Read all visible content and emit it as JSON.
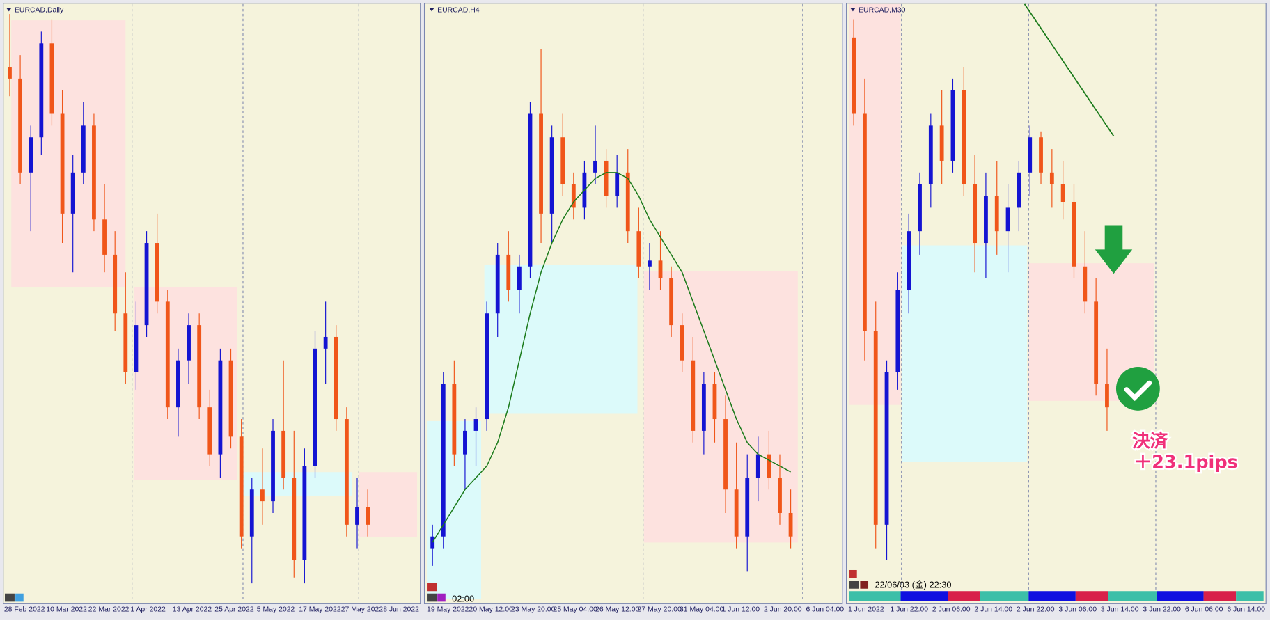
{
  "panels": [
    {
      "title": "EURCAD,Daily",
      "ylim": [
        0,
        100
      ],
      "x_labels": [
        "28 Feb 2022",
        "10 Mar 2022",
        "22 Mar 2022",
        "1 Apr 2022",
        "13 Apr 2022",
        "25 Apr 2022",
        "5 May 2022",
        "17 May 2022",
        "27 May 2022",
        "8 Jun 2022"
      ],
      "candles": [
        [
          90,
          99,
          85,
          88
        ],
        [
          88,
          92,
          70,
          72
        ],
        [
          72,
          80,
          62,
          78
        ],
        [
          78,
          96,
          75,
          94
        ],
        [
          94,
          98,
          80,
          82
        ],
        [
          82,
          86,
          60,
          65
        ],
        [
          65,
          75,
          55,
          72
        ],
        [
          72,
          84,
          70,
          80
        ],
        [
          80,
          82,
          62,
          64
        ],
        [
          64,
          70,
          55,
          58
        ],
        [
          58,
          62,
          45,
          48
        ],
        [
          48,
          55,
          36,
          38
        ],
        [
          38,
          50,
          35,
          46
        ],
        [
          46,
          62,
          44,
          60
        ],
        [
          60,
          65,
          48,
          50
        ],
        [
          50,
          52,
          30,
          32
        ],
        [
          32,
          42,
          27,
          40
        ],
        [
          40,
          48,
          36,
          46
        ],
        [
          46,
          48,
          30,
          32
        ],
        [
          32,
          35,
          22,
          24
        ],
        [
          24,
          42,
          20,
          40
        ],
        [
          40,
          42,
          25,
          27
        ],
        [
          27,
          30,
          8,
          10
        ],
        [
          10,
          20,
          2,
          18
        ],
        [
          18,
          25,
          12,
          16
        ],
        [
          16,
          30,
          14,
          28
        ],
        [
          28,
          40,
          18,
          20
        ],
        [
          20,
          28,
          3,
          6
        ],
        [
          6,
          25,
          2,
          22
        ],
        [
          22,
          45,
          20,
          42
        ],
        [
          42,
          50,
          36,
          44
        ],
        [
          44,
          46,
          28,
          30
        ],
        [
          30,
          32,
          10,
          12
        ],
        [
          12,
          20,
          8,
          15
        ],
        [
          15,
          18,
          10,
          12
        ]
      ]
    },
    {
      "title": "EURCAD,H4",
      "ylim": [
        0,
        100
      ],
      "x_labels": [
        "19 May 2022",
        "20 May 12:00",
        "23 May 20:00",
        "25 May 04:00",
        "26 May 12:00",
        "27 May 20:00",
        "31 May 04:00",
        "1 Jun 12:00",
        "2 Jun 20:00",
        "6 Jun 04:00"
      ],
      "candles": [
        [
          8,
          12,
          5,
          10
        ],
        [
          10,
          38,
          8,
          36
        ],
        [
          36,
          40,
          22,
          24
        ],
        [
          24,
          30,
          18,
          28
        ],
        [
          28,
          32,
          22,
          30
        ],
        [
          30,
          50,
          28,
          48
        ],
        [
          48,
          60,
          44,
          58
        ],
        [
          58,
          62,
          50,
          52
        ],
        [
          52,
          58,
          48,
          56
        ],
        [
          56,
          84,
          54,
          82
        ],
        [
          82,
          93,
          60,
          65
        ],
        [
          65,
          80,
          60,
          78
        ],
        [
          78,
          82,
          68,
          70
        ],
        [
          70,
          72,
          64,
          66
        ],
        [
          66,
          74,
          64,
          72
        ],
        [
          72,
          80,
          70,
          74
        ],
        [
          74,
          76,
          66,
          68
        ],
        [
          68,
          75,
          66,
          72
        ],
        [
          72,
          76,
          60,
          62
        ],
        [
          62,
          66,
          54,
          56
        ],
        [
          56,
          60,
          52,
          57
        ],
        [
          57,
          62,
          52,
          54
        ],
        [
          54,
          56,
          44,
          46
        ],
        [
          46,
          48,
          38,
          40
        ],
        [
          40,
          44,
          26,
          28
        ],
        [
          28,
          38,
          24,
          36
        ],
        [
          36,
          38,
          26,
          30
        ],
        [
          30,
          34,
          14,
          18
        ],
        [
          18,
          26,
          8,
          10
        ],
        [
          10,
          24,
          4,
          20
        ],
        [
          20,
          27,
          16,
          24
        ],
        [
          24,
          28,
          18,
          20
        ],
        [
          20,
          24,
          12,
          14
        ],
        [
          14,
          18,
          8,
          10
        ]
      ],
      "ma": [
        9,
        12,
        15,
        18,
        20,
        22,
        26,
        32,
        40,
        48,
        55,
        60,
        64,
        67,
        69,
        71,
        72,
        72,
        71,
        68,
        64,
        61,
        58,
        55,
        50,
        45,
        40,
        35,
        30,
        26,
        24,
        23,
        22,
        21
      ]
    },
    {
      "title": "EURCAD,M30",
      "ylim": [
        0,
        100
      ],
      "x_labels": [
        "1 Jun 2022",
        "1 Jun 22:00",
        "2 Jun 06:00",
        "2 Jun 14:00",
        "2 Jun 22:00",
        "3 Jun 06:00",
        "3 Jun 14:00",
        "3 Jun 22:00",
        "6 Jun 06:00",
        "6 Jun 14:00"
      ],
      "candles": [
        [
          95,
          98,
          80,
          82
        ],
        [
          82,
          88,
          40,
          45
        ],
        [
          45,
          50,
          8,
          12
        ],
        [
          12,
          40,
          6,
          38
        ],
        [
          38,
          55,
          35,
          52
        ],
        [
          52,
          65,
          48,
          62
        ],
        [
          62,
          72,
          58,
          70
        ],
        [
          70,
          82,
          66,
          80
        ],
        [
          80,
          86,
          70,
          74
        ],
        [
          74,
          88,
          72,
          86
        ],
        [
          86,
          90,
          68,
          70
        ],
        [
          70,
          75,
          55,
          60
        ],
        [
          60,
          72,
          54,
          68
        ],
        [
          68,
          74,
          58,
          62
        ],
        [
          62,
          70,
          55,
          66
        ],
        [
          66,
          74,
          62,
          72
        ],
        [
          72,
          80,
          68,
          78
        ],
        [
          78,
          79,
          70,
          72
        ],
        [
          72,
          76,
          66,
          70
        ],
        [
          70,
          74,
          64,
          67
        ],
        [
          67,
          70,
          54,
          56
        ],
        [
          56,
          62,
          48,
          50
        ],
        [
          50,
          54,
          34,
          36
        ],
        [
          36,
          42,
          28,
          32
        ]
      ]
    }
  ],
  "time_label": "02:00",
  "timestamp": "22/06/03 (金) 22:30",
  "annotation": {
    "line1": "決済",
    "line2": "＋23.1pips"
  }
}
